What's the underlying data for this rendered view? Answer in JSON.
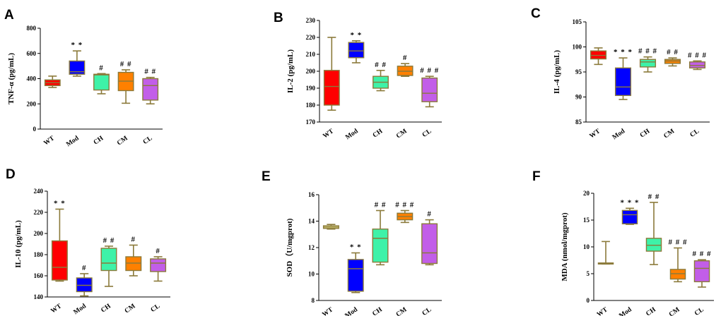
{
  "chart_data": [
    {
      "panel": "A",
      "type": "boxplot",
      "ylabel": "TNF-α (pg/mL)",
      "ylim": [
        0,
        800
      ],
      "yticks": [
        0,
        200,
        400,
        600,
        800
      ],
      "categories": [
        "WT",
        "Mod",
        "CH",
        "CM",
        "CL"
      ],
      "colors": [
        "#ff0000",
        "#0000ff",
        "#3ef2a8",
        "#ff8000",
        "#c25ee8"
      ],
      "boxes": [
        {
          "min": 330,
          "q1": 345,
          "median": 368,
          "q3": 390,
          "max": 420
        },
        {
          "min": 420,
          "q1": 435,
          "median": 455,
          "q3": 540,
          "max": 620
        },
        {
          "min": 280,
          "q1": 310,
          "median": 430,
          "q3": 435,
          "max": 440
        },
        {
          "min": 205,
          "q1": 305,
          "median": 380,
          "q3": 450,
          "max": 470
        },
        {
          "min": 200,
          "q1": 230,
          "median": 345,
          "q3": 400,
          "max": 410
        }
      ],
      "significance": [
        "",
        "* *",
        "#",
        "# #",
        "# #"
      ]
    },
    {
      "panel": "B",
      "type": "boxplot",
      "ylabel": "IL-2 (pg/mL)",
      "ylim": [
        170,
        230
      ],
      "yticks": [
        170,
        180,
        190,
        200,
        210,
        220,
        230
      ],
      "categories": [
        "WT",
        "Mod",
        "CH",
        "CM",
        "CL"
      ],
      "colors": [
        "#ff0000",
        "#0000ff",
        "#3ef2a8",
        "#ff8000",
        "#c25ee8"
      ],
      "boxes": [
        {
          "min": 177,
          "q1": 180,
          "median": 191,
          "q3": 200.5,
          "max": 220
        },
        {
          "min": 205,
          "q1": 208,
          "median": 212,
          "q3": 217,
          "max": 218
        },
        {
          "min": 188.5,
          "q1": 190,
          "median": 193.5,
          "q3": 197,
          "max": 200.5
        },
        {
          "min": 197,
          "q1": 197.5,
          "median": 200,
          "q3": 203,
          "max": 204.5
        },
        {
          "min": 179,
          "q1": 182,
          "median": 187,
          "q3": 196,
          "max": 197
        }
      ],
      "significance": [
        "",
        "* *",
        "# #",
        "#",
        "# # #"
      ]
    },
    {
      "panel": "C",
      "type": "boxplot",
      "ylabel": "IL-4 (pg/mL)",
      "ylim": [
        85,
        105
      ],
      "yticks": [
        85,
        90,
        95,
        100,
        105
      ],
      "categories": [
        "WT",
        "Mod",
        "CH",
        "CM",
        "CL"
      ],
      "colors": [
        "#ff0000",
        "#0000ff",
        "#3ef2a8",
        "#ff8000",
        "#c25ee8"
      ],
      "boxes": [
        {
          "min": 96.5,
          "q1": 97.6,
          "median": 98.3,
          "q3": 99.2,
          "max": 99.8
        },
        {
          "min": 89.5,
          "q1": 90.3,
          "median": 92,
          "q3": 95.8,
          "max": 97.8
        },
        {
          "min": 95,
          "q1": 96,
          "median": 97,
          "q3": 97.5,
          "max": 98
        },
        {
          "min": 96.2,
          "q1": 96.7,
          "median": 97.2,
          "q3": 97.5,
          "max": 97.8
        },
        {
          "min": 95.5,
          "q1": 95.8,
          "median": 96.3,
          "q3": 97,
          "max": 97.2
        }
      ],
      "significance": [
        "",
        "* * *",
        "# # #",
        "# #",
        "# # #"
      ]
    },
    {
      "panel": "D",
      "type": "boxplot",
      "ylabel": "IL-10 (pg/mL)",
      "ylim": [
        140,
        240
      ],
      "yticks": [
        140,
        160,
        180,
        200,
        220,
        240
      ],
      "categories": [
        "WT",
        "Mod",
        "CH",
        "CM",
        "CL"
      ],
      "colors": [
        "#ff0000",
        "#0000ff",
        "#3ef2a8",
        "#ff8000",
        "#c25ee8"
      ],
      "boxes": [
        {
          "min": 155,
          "q1": 156,
          "median": 168,
          "q3": 193,
          "max": 223
        },
        {
          "min": 141,
          "q1": 145,
          "median": 151,
          "q3": 158,
          "max": 162
        },
        {
          "min": 150,
          "q1": 165,
          "median": 172,
          "q3": 186,
          "max": 188
        },
        {
          "min": 160,
          "q1": 165,
          "median": 172,
          "q3": 178,
          "max": 189
        },
        {
          "min": 155,
          "q1": 164,
          "median": 172,
          "q3": 176,
          "max": 178
        }
      ],
      "significance": [
        "* *",
        "#",
        "# #",
        "#",
        "#"
      ]
    },
    {
      "panel": "E",
      "type": "boxplot",
      "ylabel": "SOD（U/mgprot)",
      "ylim": [
        8,
        16
      ],
      "yticks": [
        8,
        10,
        12,
        14,
        16
      ],
      "categories": [
        "WT",
        "Mod",
        "CH",
        "CM",
        "CL"
      ],
      "colors": [
        "#ffffa0",
        "#0000ff",
        "#3ef2a8",
        "#ff8000",
        "#c25ee8"
      ],
      "boxes": [
        {
          "min": 13.4,
          "q1": 13.45,
          "median": 13.55,
          "q3": 13.65,
          "max": 13.75
        },
        {
          "min": 8.6,
          "q1": 8.7,
          "median": 10.4,
          "q3": 11.1,
          "max": 11.6
        },
        {
          "min": 10.7,
          "q1": 10.9,
          "median": 12.7,
          "q3": 13.4,
          "max": 14.8
        },
        {
          "min": 13.9,
          "q1": 14.1,
          "median": 14.35,
          "q3": 14.6,
          "max": 14.8
        },
        {
          "min": 10.7,
          "q1": 10.8,
          "median": 11.6,
          "q3": 13.8,
          "max": 14.1
        }
      ],
      "significance": [
        "",
        "* *",
        "# #",
        "# # #",
        "#"
      ]
    },
    {
      "panel": "F",
      "type": "boxplot",
      "ylabel": "MDA (nmol/mgprot)",
      "ylim": [
        0,
        20
      ],
      "yticks": [
        0,
        5,
        10,
        15,
        20
      ],
      "categories": [
        "WT",
        "Mod",
        "CH",
        "CM",
        "CL"
      ],
      "colors": [
        "#ffffa0",
        "#0000ff",
        "#3ef2a8",
        "#ff8000",
        "#c25ee8"
      ],
      "boxes": [
        {
          "min": 6.8,
          "q1": 6.85,
          "median": 6.9,
          "q3": 7.0,
          "max": 11
        },
        {
          "min": 14.2,
          "q1": 14.3,
          "median": 16,
          "q3": 16.8,
          "max": 17.2
        },
        {
          "min": 6.7,
          "q1": 9.2,
          "median": 10.3,
          "q3": 11.6,
          "max": 18.3
        },
        {
          "min": 3.5,
          "q1": 4.0,
          "median": 5.0,
          "q3": 5.8,
          "max": 9.8
        },
        {
          "min": 2.5,
          "q1": 3.5,
          "median": 6.0,
          "q3": 7.4,
          "max": 7.6
        }
      ],
      "significance": [
        "",
        "* * *",
        "# #",
        "# # #",
        "# # #"
      ]
    }
  ]
}
